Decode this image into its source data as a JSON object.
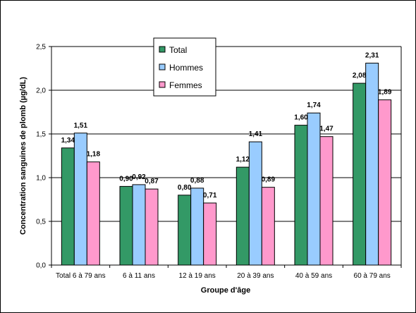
{
  "chart_data": {
    "type": "bar",
    "title": "",
    "xlabel": "Groupe d'âge",
    "ylabel": "Concentration sanguines de plomb (µg/dL)",
    "ylim": [
      0,
      2.5
    ],
    "yticks": [
      "0,0",
      "0,5",
      "1,0",
      "1,5",
      "2,0",
      "2,5"
    ],
    "ytick_values": [
      0,
      0.5,
      1.0,
      1.5,
      2.0,
      2.5
    ],
    "grid": true,
    "legend_position": "top-center",
    "categories": [
      "Total 6 à 79 ans",
      "6 à 11 ans",
      "12 à 19 ans",
      "20 à 39 ans",
      "40 à 59 ans",
      "60 à 79 ans"
    ],
    "series": [
      {
        "name": "Total",
        "color": "#339966",
        "values": [
          1.34,
          0.9,
          0.8,
          1.12,
          1.6,
          2.08
        ],
        "labels": [
          "1,34",
          "0,90",
          "0,80",
          "1,12",
          "1,60",
          "2,08"
        ]
      },
      {
        "name": "Hommes",
        "color": "#99CCFF",
        "values": [
          1.51,
          0.92,
          0.88,
          1.41,
          1.74,
          2.31
        ],
        "labels": [
          "1,51",
          "0,92",
          "0,88",
          "1,41",
          "1,74",
          "2,31"
        ]
      },
      {
        "name": "Femmes",
        "color": "#FF99CC",
        "values": [
          1.18,
          0.87,
          0.71,
          0.89,
          1.47,
          1.89
        ],
        "labels": [
          "1,18",
          "0,87",
          "0,71",
          "0,89",
          "1,47",
          "1,89"
        ]
      }
    ]
  }
}
